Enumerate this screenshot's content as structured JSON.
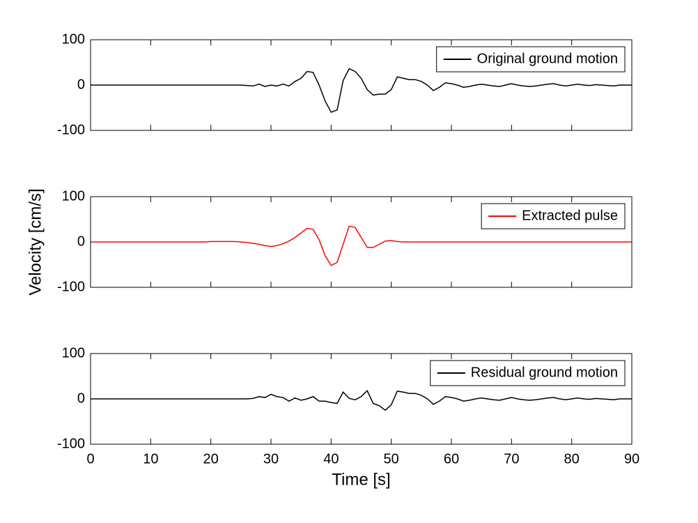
{
  "chart_data": [
    {
      "type": "line",
      "x": [
        0,
        1,
        2,
        3,
        4,
        5,
        6,
        7,
        8,
        9,
        10,
        11,
        12,
        13,
        14,
        15,
        16,
        17,
        18,
        19,
        20,
        21,
        22,
        23,
        24,
        25,
        26,
        27,
        28,
        29,
        30,
        31,
        32,
        33,
        34,
        35,
        36,
        37,
        38,
        39,
        40,
        41,
        42,
        43,
        44,
        45,
        46,
        47,
        48,
        49,
        50,
        51,
        52,
        53,
        54,
        55,
        56,
        57,
        58,
        59,
        60,
        61,
        62,
        63,
        64,
        65,
        66,
        67,
        68,
        69,
        70,
        71,
        72,
        73,
        74,
        75,
        76,
        77,
        78,
        79,
        80,
        81,
        82,
        83,
        84,
        85,
        86,
        87,
        88,
        89,
        90
      ],
      "series": [
        {
          "name": "Original ground motion",
          "color": "#000000",
          "values": [
            0,
            0,
            0,
            0,
            0,
            0,
            0,
            0,
            0,
            0,
            0,
            0,
            0,
            0,
            0,
            0,
            0,
            0,
            0,
            0,
            0,
            0,
            0,
            0,
            0,
            0,
            -1,
            -2,
            2,
            -3,
            0,
            -2,
            2,
            -2,
            8,
            15,
            30,
            28,
            0,
            -35,
            -60,
            -55,
            10,
            36,
            30,
            15,
            -10,
            -22,
            -20,
            -20,
            -10,
            18,
            15,
            12,
            12,
            8,
            0,
            -12,
            -5,
            5,
            3,
            0,
            -5,
            -3,
            0,
            2,
            0,
            -2,
            -3,
            0,
            3,
            0,
            -2,
            -3,
            -2,
            0,
            2,
            3,
            0,
            -2,
            0,
            2,
            0,
            -1,
            1,
            0,
            -1,
            -2,
            0,
            0,
            0
          ]
        }
      ],
      "xlim": [
        0,
        90
      ],
      "xticks": [
        0,
        10,
        20,
        30,
        40,
        50,
        60,
        70,
        80,
        90
      ],
      "ylim": [
        -100,
        100
      ],
      "yticks": [
        -100,
        0,
        100
      ],
      "legend": "upper right"
    },
    {
      "type": "line",
      "x": [
        0,
        1,
        2,
        3,
        4,
        5,
        6,
        7,
        8,
        9,
        10,
        11,
        12,
        13,
        14,
        15,
        16,
        17,
        18,
        19,
        20,
        21,
        22,
        23,
        24,
        25,
        26,
        27,
        28,
        29,
        30,
        31,
        32,
        33,
        34,
        35,
        36,
        37,
        38,
        39,
        40,
        41,
        42,
        43,
        44,
        45,
        46,
        47,
        48,
        49,
        50,
        51,
        52,
        53,
        54,
        55,
        56,
        57,
        58,
        59,
        60,
        61,
        62,
        63,
        64,
        65,
        66,
        67,
        68,
        69,
        70,
        71,
        72,
        73,
        74,
        75,
        76,
        77,
        78,
        79,
        80,
        81,
        82,
        83,
        84,
        85,
        86,
        87,
        88,
        89,
        90
      ],
      "series": [
        {
          "name": "Extracted pulse",
          "color": "#ff0000",
          "values": [
            0,
            0,
            0,
            0,
            0,
            0,
            0,
            0,
            0,
            0,
            0,
            0,
            0,
            0,
            0,
            0,
            0,
            0,
            0,
            0,
            1,
            1,
            1,
            1,
            1,
            0,
            -1,
            -3,
            -5,
            -8,
            -10,
            -8,
            -4,
            2,
            10,
            20,
            30,
            28,
            5,
            -30,
            -52,
            -45,
            -5,
            35,
            32,
            10,
            -12,
            -12,
            -5,
            2,
            3,
            1,
            0,
            0,
            0,
            0,
            0,
            0,
            0,
            0,
            0,
            0,
            0,
            0,
            0,
            0,
            0,
            0,
            0,
            0,
            0,
            0,
            0,
            0,
            0,
            0,
            0,
            0,
            0,
            0,
            0,
            0,
            0,
            0,
            0,
            0,
            0,
            0,
            0,
            0,
            0
          ]
        }
      ],
      "xlim": [
        0,
        90
      ],
      "xticks": [
        0,
        10,
        20,
        30,
        40,
        50,
        60,
        70,
        80,
        90
      ],
      "ylim": [
        -100,
        100
      ],
      "yticks": [
        -100,
        0,
        100
      ],
      "legend": "upper right",
      "ylabel": "Velocity [cm/s]"
    },
    {
      "type": "line",
      "x": [
        0,
        1,
        2,
        3,
        4,
        5,
        6,
        7,
        8,
        9,
        10,
        11,
        12,
        13,
        14,
        15,
        16,
        17,
        18,
        19,
        20,
        21,
        22,
        23,
        24,
        25,
        26,
        27,
        28,
        29,
        30,
        31,
        32,
        33,
        34,
        35,
        36,
        37,
        38,
        39,
        40,
        41,
        42,
        43,
        44,
        45,
        46,
        47,
        48,
        49,
        50,
        51,
        52,
        53,
        54,
        55,
        56,
        57,
        58,
        59,
        60,
        61,
        62,
        63,
        64,
        65,
        66,
        67,
        68,
        69,
        70,
        71,
        72,
        73,
        74,
        75,
        76,
        77,
        78,
        79,
        80,
        81,
        82,
        83,
        84,
        85,
        86,
        87,
        88,
        89,
        90
      ],
      "series": [
        {
          "name": "Residual ground motion",
          "color": "#000000",
          "values": [
            0,
            0,
            0,
            0,
            0,
            0,
            0,
            0,
            0,
            0,
            0,
            0,
            0,
            0,
            0,
            0,
            0,
            0,
            0,
            0,
            0,
            0,
            0,
            0,
            0,
            0,
            0,
            1,
            5,
            3,
            10,
            5,
            3,
            -5,
            2,
            -3,
            0,
            5,
            -5,
            -5,
            -8,
            -10,
            15,
            1,
            -2,
            5,
            18,
            -10,
            -15,
            -25,
            -13,
            17,
            15,
            12,
            12,
            8,
            0,
            -12,
            -5,
            5,
            3,
            0,
            -5,
            -3,
            0,
            2,
            0,
            -2,
            -3,
            0,
            3,
            0,
            -2,
            -3,
            -2,
            0,
            2,
            3,
            0,
            -2,
            0,
            2,
            0,
            -1,
            1,
            0,
            -1,
            -2,
            0,
            0,
            0
          ]
        }
      ],
      "xlim": [
        0,
        90
      ],
      "xticks": [
        0,
        10,
        20,
        30,
        40,
        50,
        60,
        70,
        80,
        90
      ],
      "ylim": [
        -100,
        100
      ],
      "yticks": [
        -100,
        0,
        100
      ],
      "legend": "upper right",
      "xlabel": "Time [s]"
    }
  ]
}
